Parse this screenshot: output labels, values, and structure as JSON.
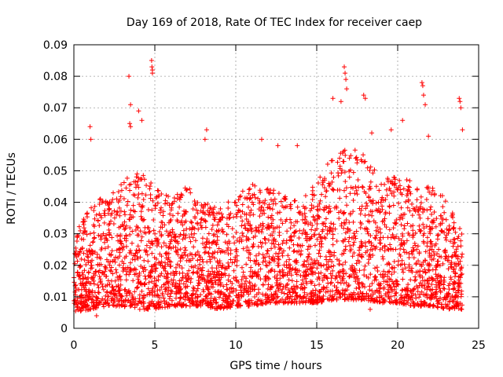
{
  "chart_data": {
    "type": "scatter",
    "title": "Day 169 of 2018, Rate Of TEC Index for receiver caep",
    "xlabel": "GPS time / hours",
    "ylabel": "ROTI / TECUs",
    "xlim": [
      0,
      25
    ],
    "ylim": [
      0,
      0.09
    ],
    "x_ticks": [
      0,
      5,
      10,
      15,
      20,
      25
    ],
    "x_tick_labels": [
      "0",
      "5",
      "10",
      "15",
      "20",
      "25"
    ],
    "y_ticks": [
      0,
      0.01,
      0.02,
      0.03,
      0.04,
      0.05,
      0.06,
      0.07,
      0.08,
      0.09
    ],
    "y_tick_labels": [
      "0",
      "0.01",
      "0.02",
      "0.03",
      "0.04",
      "0.05",
      "0.06",
      "0.07",
      "0.08",
      "0.09"
    ],
    "grid": true,
    "marker": "+",
    "color": "#ff0000",
    "series": [
      {
        "name": "ROTI",
        "profile_hours": [
          0,
          1,
          2,
          3,
          4,
          5,
          6,
          7,
          8,
          9,
          10,
          11,
          12,
          13,
          14,
          15,
          16,
          17,
          18,
          19,
          20,
          21,
          22,
          23,
          24
        ],
        "profile_typical_max": [
          0.03,
          0.038,
          0.043,
          0.047,
          0.05,
          0.045,
          0.042,
          0.045,
          0.04,
          0.038,
          0.042,
          0.046,
          0.045,
          0.042,
          0.04,
          0.047,
          0.055,
          0.058,
          0.055,
          0.05,
          0.048,
          0.047,
          0.045,
          0.042,
          0.03
        ],
        "profile_typical_min": [
          0.005,
          0.006,
          0.007,
          0.007,
          0.006,
          0.006,
          0.007,
          0.007,
          0.007,
          0.006,
          0.007,
          0.007,
          0.008,
          0.008,
          0.008,
          0.008,
          0.009,
          0.009,
          0.009,
          0.008,
          0.008,
          0.007,
          0.007,
          0.006,
          0.006
        ],
        "outliers": [
          [
            3.4,
            0.08
          ],
          [
            3.45,
            0.065
          ],
          [
            3.5,
            0.071
          ],
          [
            3.5,
            0.064
          ],
          [
            4.8,
            0.085
          ],
          [
            4.82,
            0.083
          ],
          [
            4.85,
            0.082
          ],
          [
            4.85,
            0.081
          ],
          [
            1.0,
            0.064
          ],
          [
            1.05,
            0.06
          ],
          [
            4.0,
            0.069
          ],
          [
            4.2,
            0.066
          ],
          [
            8.2,
            0.063
          ],
          [
            8.1,
            0.06
          ],
          [
            11.6,
            0.06
          ],
          [
            12.6,
            0.058
          ],
          [
            13.8,
            0.058
          ],
          [
            16.0,
            0.073
          ],
          [
            16.5,
            0.072
          ],
          [
            16.7,
            0.083
          ],
          [
            16.75,
            0.081
          ],
          [
            16.8,
            0.079
          ],
          [
            16.85,
            0.076
          ],
          [
            17.9,
            0.074
          ],
          [
            18.0,
            0.073
          ],
          [
            18.4,
            0.062
          ],
          [
            19.6,
            0.063
          ],
          [
            20.3,
            0.066
          ],
          [
            21.5,
            0.078
          ],
          [
            21.55,
            0.077
          ],
          [
            21.6,
            0.074
          ],
          [
            21.7,
            0.071
          ],
          [
            21.9,
            0.061
          ],
          [
            23.8,
            0.073
          ],
          [
            23.85,
            0.072
          ],
          [
            23.9,
            0.07
          ],
          [
            24.0,
            0.063
          ],
          [
            1.4,
            0.004
          ],
          [
            18.3,
            0.006
          ]
        ]
      }
    ]
  }
}
